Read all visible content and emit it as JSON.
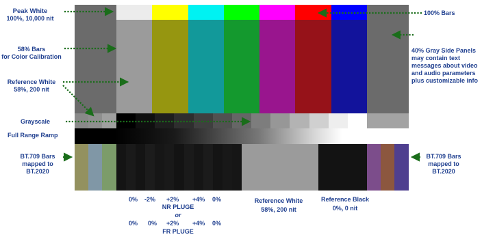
{
  "top_bars": {
    "ref_colors": [
      "#ececec",
      "#ffff00",
      "#00f2f2",
      "#00ff00",
      "#ff00ff",
      "#ff0000",
      "#0000ff"
    ],
    "main_colors": [
      "#9b9b9b",
      "#969610",
      "#12999a",
      "#14992e",
      "#99158e",
      "#961219",
      "#12139b"
    ],
    "side_gray": "#6b6b6b"
  },
  "grayscale": {
    "left_patches": [
      "#898989",
      "#8f8f8f",
      "#a0a0a0"
    ],
    "steps": [
      "#000000",
      "#0f0f0f",
      "#1e1e1e",
      "#2e2e2e",
      "#3f3f3f",
      "#515151",
      "#666666",
      "#7d7d7d",
      "#979797",
      "#b3b3b3",
      "#d0d0d0",
      "#eeeeee",
      "#ffffff"
    ],
    "right_patch": "#a3a3a3"
  },
  "bottom": {
    "bt709_left": [
      "#93915f",
      "#8097a6",
      "#7c9c6a"
    ],
    "pluge_blacks": [
      "#141414",
      "#1a1a1a",
      "#141414",
      "#1c1c1c",
      "#161616",
      "#191919",
      "#131313",
      "#1a1a1a",
      "#151515",
      "#1b1b1b",
      "#141414",
      "#181818",
      "#161616"
    ],
    "ref_white": "#9b9b9b",
    "ref_black": "#131313",
    "bt709_right": [
      "#7c4d8b",
      "#8c573f",
      "#4f3f8f"
    ]
  },
  "labels": {
    "peak_white": {
      "title": "Peak White",
      "sub": "100%, 10,000 nit"
    },
    "bars58": {
      "l1": "58% Bars",
      "l2": "for Color Calibration"
    },
    "reference_white": {
      "title": "Reference White",
      "sub": "58%, 200 nit"
    },
    "grayscale": "Grayscale",
    "full_range_ramp": "Full Range Ramp",
    "bt709_left": {
      "l1": "BT.709 Bars",
      "l2": "mapped to",
      "l3": "BT.2020"
    },
    "bars100": "100% Bars",
    "side_panels": {
      "l1": "40% Gray Side Panels",
      "l2": "may contain text",
      "l3": "messages about video",
      "l4": "and audio parameters",
      "l5": "plus customizable info"
    },
    "bt709_right": {
      "l1": "BT.709 Bars",
      "l2": "mapped to",
      "l3": "BT.2020"
    },
    "nr_pluge": {
      "row1": [
        "0%",
        "-2%",
        "+2%",
        "+4%",
        "0%"
      ],
      "title": "NR PLUGE",
      "or": "or",
      "row2": [
        "0%",
        "0%",
        "+2%",
        "+4%",
        "0%"
      ],
      "title2": "FR PLUGE"
    },
    "ref_white_bottom": {
      "title": "Reference White",
      "sub": "58%, 200 nit"
    },
    "ref_black_bottom": {
      "title": "Reference Black",
      "sub": "0%, 0 nit"
    }
  },
  "colors": {
    "label_blue": "#1f3f8f",
    "arrow_green": "#1a6d1a"
  }
}
